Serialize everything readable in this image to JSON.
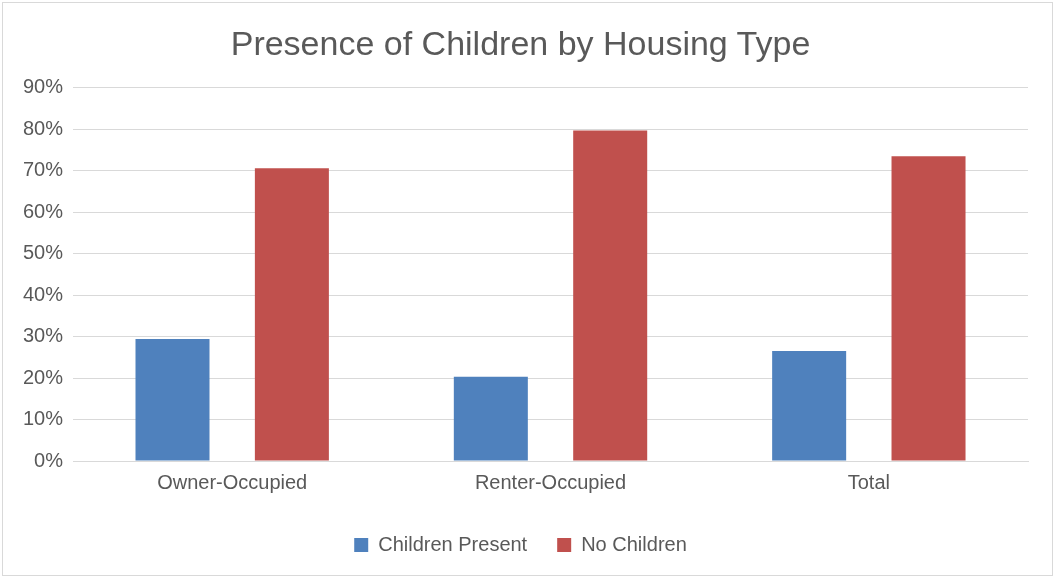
{
  "chart_data": {
    "type": "bar",
    "title": "Presence of Children by Housing Type",
    "categories": [
      "Owner-Occupied",
      "Renter-Occupied",
      "Total"
    ],
    "series": [
      {
        "name": "Children Present",
        "color": "#4f81bd",
        "values": [
          29.4,
          20.3,
          26.5
        ]
      },
      {
        "name": "No Children",
        "color": "#c0504d",
        "values": [
          70.6,
          79.7,
          73.5
        ]
      }
    ],
    "ylim": [
      0,
      90
    ],
    "yticks": [
      {
        "value": 0,
        "label": "0%"
      },
      {
        "value": 10,
        "label": "10%"
      },
      {
        "value": 20,
        "label": "20%"
      },
      {
        "value": 30,
        "label": "30%"
      },
      {
        "value": 40,
        "label": "40%"
      },
      {
        "value": 50,
        "label": "50%"
      },
      {
        "value": 60,
        "label": "60%"
      },
      {
        "value": 70,
        "label": "70%"
      },
      {
        "value": 80,
        "label": "80%"
      },
      {
        "value": 90,
        "label": "90%"
      }
    ],
    "grid": "y",
    "legend": "bottom"
  }
}
